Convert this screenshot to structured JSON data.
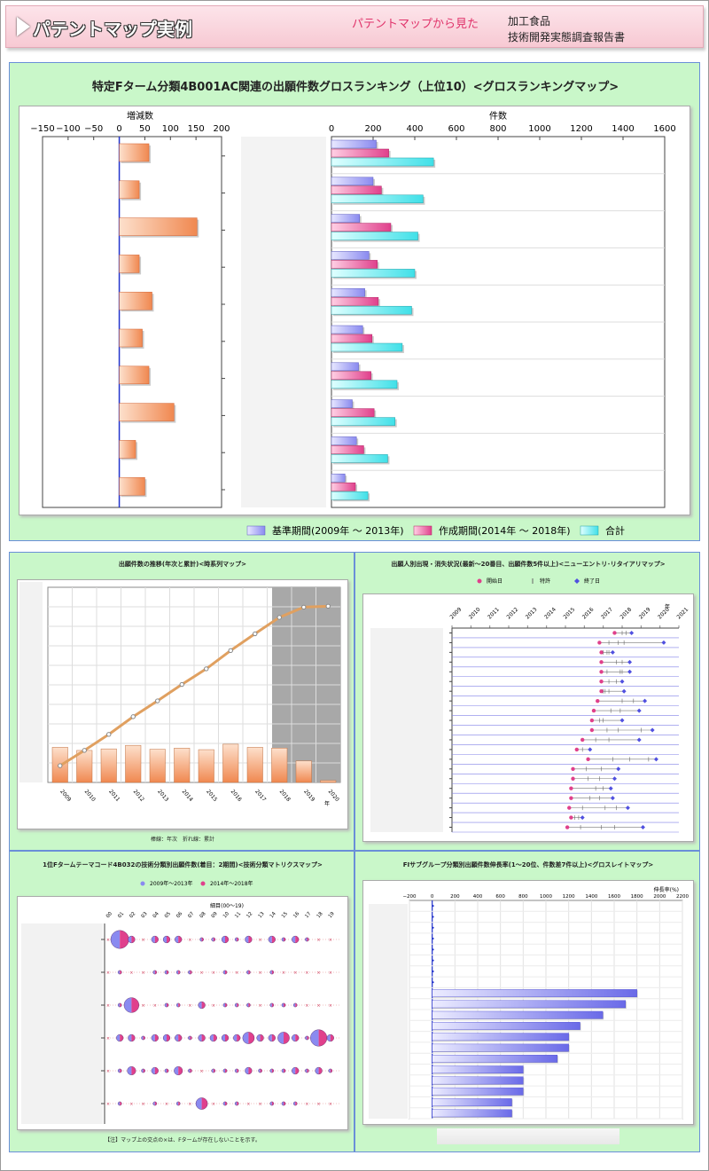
{
  "header": {
    "title": "パテントマップ実例",
    "subtitle": "パテントマップから見た",
    "book_line1": "加工食品",
    "book_line2": "技術開発実態調査報告書"
  },
  "colors": {
    "base": "#8a8af0",
    "current": "#e0408c",
    "total": "#40e0e8",
    "diff": "#f08850",
    "accent": "#2233cc"
  },
  "main": {
    "title": "特定Fターム分類4B001AC関連の出願件数グロスランキング（上位10）<グロスランキングマップ>",
    "left_axis_label": "増減数",
    "right_axis_label": "件数",
    "legend": [
      "基準期間(2009年 ～ 2013年)",
      "作成期間(2014年 ～ 2018年)",
      "合計"
    ]
  },
  "ts": {
    "title": "出願件数の推移(年次と累計)<時系列マップ>",
    "caption": "棒線：年次　折れ線：累計",
    "year_unit": "年"
  },
  "ne": {
    "title": "出願人別出現・消失状況(最新～20番目、出願件数5件以上)<ニューエントリ･リタイアリマップ>",
    "legend": [
      "開始日",
      "特許",
      "終了日"
    ],
    "year_unit": "年"
  },
  "mx": {
    "title": "1位Fタームテーマコード4B032の技術分類別出願件数(着目：2期間)<技術分類マトリクスマップ>",
    "legend": [
      "2009年～2013年",
      "2014年～2018年"
    ],
    "axis_label": "細目(00～19)",
    "note": "【注】マップ上の交点の×は、Fタームが存在しないことを示す。"
  },
  "gr": {
    "title": "FIサブグループ分類別出願件数伸長率(1～20位、件数差7件以上)<グロスレイトマップ>",
    "axis_label": "伸長率(%)"
  },
  "chart_data": [
    {
      "type": "bar",
      "title": "特定Fターム分類4B001AC関連の出願件数グロスランキング（上位10）<グロスランキングマップ>",
      "xlabel": "増減数",
      "xlim": [
        -150,
        200
      ],
      "ticks": [
        -150,
        -100,
        -50,
        0,
        50,
        100,
        150,
        200
      ],
      "values": [
        58,
        39,
        152,
        39,
        64,
        45,
        58,
        107,
        32,
        50
      ]
    },
    {
      "type": "bar",
      "xlabel": "件数",
      "xlim": [
        0,
        1600
      ],
      "ticks": [
        0,
        200,
        400,
        600,
        800,
        1000,
        1200,
        1400,
        1600
      ],
      "series": [
        {
          "name": "基準期間(2009年 ～ 2013年)",
          "values": [
            215,
            200,
            135,
            180,
            160,
            150,
            130,
            100,
            120,
            65
          ]
        },
        {
          "name": "作成期間(2014年 ～ 2018年)",
          "values": [
            275,
            240,
            285,
            220,
            225,
            195,
            190,
            205,
            155,
            115
          ]
        },
        {
          "name": "合計",
          "values": [
            490,
            440,
            415,
            400,
            385,
            340,
            315,
            305,
            270,
            175
          ]
        }
      ]
    },
    {
      "type": "bar",
      "title": "出願件数の推移(年次と累計)<時系列マップ>",
      "x": [
        "2009",
        "2010",
        "2011",
        "2012",
        "2013",
        "2014",
        "2015",
        "2016",
        "2017",
        "2018",
        "2019",
        "2020"
      ],
      "annual": [
        90,
        82,
        86,
        95,
        85,
        88,
        84,
        98,
        90,
        88,
        55,
        5
      ],
      "cumulative": [
        90,
        172,
        258,
        353,
        438,
        526,
        610,
        708,
        798,
        886,
        941,
        946
      ],
      "ylim": [
        0,
        1000
      ]
    },
    {
      "type": "scatter",
      "title": "出願人別出現・消失状況(最新～20番目、出願件数5件以上)<ニューエントリ･リタイアリマップ>",
      "x": [
        "2009",
        "2010",
        "2011",
        "2012",
        "2013",
        "2014",
        "2015",
        "2016",
        "2017",
        "2018",
        "2019",
        "2020",
        "2021"
      ],
      "rows": [
        [
          2017.6,
          2018.5,
          [
            2018.0,
            2018.2
          ]
        ],
        [
          2016.8,
          2020.2,
          [
            2017.3,
            2017.8,
            2018.1
          ]
        ],
        [
          2016.9,
          2017.5,
          [
            2017.0,
            2017.2,
            2017.3
          ]
        ],
        [
          2016.9,
          2018.4,
          [
            2017.7,
            2018.0
          ]
        ],
        [
          2016.9,
          2018.4,
          [
            2017.2,
            2017.9,
            2018.0
          ]
        ],
        [
          2016.9,
          2018.0,
          [
            2017.3,
            2017.7
          ]
        ],
        [
          2016.9,
          2018.1,
          [
            2017.0,
            2017.1,
            2017.3
          ]
        ],
        [
          2016.7,
          2019.2,
          [
            2018.0,
            2018.6
          ]
        ],
        [
          2016.5,
          2018.9,
          [
            2017.4,
            2017.9
          ]
        ],
        [
          2016.4,
          2018.0,
          [
            2016.8,
            2017.0
          ]
        ],
        [
          2016.4,
          2019.6,
          [
            2017.2,
            2017.8,
            2019.0
          ]
        ],
        [
          2015.9,
          2018.9,
          [
            2016.6,
            2017.3
          ]
        ],
        [
          2015.6,
          2016.3,
          [
            2015.9
          ]
        ],
        [
          2016.2,
          2019.8,
          [
            2017.5,
            2018.4,
            2019.4
          ]
        ],
        [
          2015.4,
          2017.8,
          [
            2016.1,
            2016.9
          ]
        ],
        [
          2015.4,
          2017.6,
          [
            2016.2,
            2016.8
          ]
        ],
        [
          2015.3,
          2017.4,
          [
            2016.6,
            2017.0
          ]
        ],
        [
          2015.3,
          2017.5,
          [
            2016.3,
            2016.8
          ]
        ],
        [
          2015.2,
          2018.3,
          [
            2015.9,
            2017.1,
            2017.7
          ]
        ],
        [
          2015.3,
          2015.9,
          [
            2015.5,
            2015.7
          ]
        ],
        [
          2015.1,
          2019.1,
          [
            2015.8,
            2016.9,
            2017.6
          ]
        ]
      ]
    },
    {
      "type": "scatter",
      "title": "1位Fタームテーマコード4B032の技術分類別出願件数(着目：2期間)<技術分類マトリクスマップ>",
      "x": [
        "00",
        "01",
        "02",
        "03",
        "04",
        "05",
        "06",
        "07",
        "08",
        "09",
        "10",
        "11",
        "12",
        "13",
        "14",
        "15",
        "16",
        "17",
        "18",
        "19"
      ],
      "grid": [
        [
          0,
          10,
          3,
          0,
          3,
          3,
          3,
          0,
          1,
          1,
          3,
          1,
          3,
          0,
          3,
          1,
          3,
          1,
          0,
          0
        ],
        [
          0,
          1,
          0,
          0,
          1,
          1,
          1,
          1,
          0,
          0,
          1,
          0,
          1,
          0,
          1,
          0,
          0,
          0,
          0,
          0
        ],
        [
          0,
          1,
          8,
          0,
          0,
          1,
          1,
          0,
          3,
          0,
          1,
          1,
          1,
          0,
          1,
          1,
          1,
          0,
          0,
          0
        ],
        [
          0,
          3,
          3,
          1,
          3,
          3,
          3,
          1,
          3,
          3,
          3,
          3,
          6,
          3,
          3,
          6,
          3,
          1,
          9,
          3
        ],
        [
          0,
          1,
          4,
          1,
          3,
          1,
          4,
          1,
          0,
          1,
          1,
          1,
          3,
          1,
          1,
          1,
          3,
          1,
          3,
          1
        ],
        [
          0,
          1,
          0,
          0,
          1,
          0,
          1,
          0,
          6,
          0,
          1,
          1,
          0,
          0,
          1,
          1,
          1,
          0,
          0,
          0
        ]
      ]
    },
    {
      "type": "bar",
      "title": "FIサブグループ分類別出願件数伸長率(1～20位、件数差7件以上)<グロスレイトマップ>",
      "xlabel": "伸長率(%)",
      "xlim": [
        -200,
        2200
      ],
      "ticks": [
        -200,
        0,
        200,
        400,
        600,
        800,
        1000,
        1200,
        1400,
        1600,
        1800,
        2000,
        2200
      ],
      "values": [
        0,
        0,
        0,
        0,
        0,
        0,
        0,
        0,
        1800,
        1700,
        1500,
        1300,
        1200,
        1200,
        1100,
        800,
        800,
        800,
        700,
        700
      ]
    }
  ]
}
